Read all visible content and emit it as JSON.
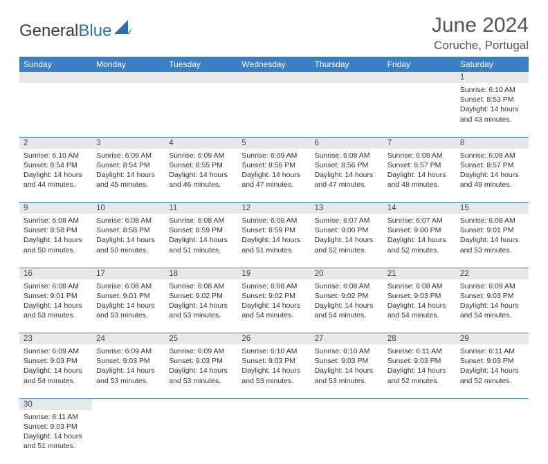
{
  "brand": {
    "part1": "General",
    "part2": "Blue"
  },
  "title": "June 2024",
  "location": "Coruche, Portugal",
  "colors": {
    "header_bg": "#3b7fc4",
    "header_fg": "#ffffff",
    "daynum_bg": "#e8e8e8",
    "border": "#3b7fc4",
    "text": "#333333",
    "logo_blue": "#2e6fb0"
  },
  "weekdays": [
    "Sunday",
    "Monday",
    "Tuesday",
    "Wednesday",
    "Thursday",
    "Friday",
    "Saturday"
  ],
  "weeks": [
    [
      null,
      null,
      null,
      null,
      null,
      null,
      {
        "n": "1",
        "sr": "Sunrise: 6:10 AM",
        "ss": "Sunset: 8:53 PM",
        "d1": "Daylight: 14 hours",
        "d2": "and 43 minutes."
      }
    ],
    [
      {
        "n": "2",
        "sr": "Sunrise: 6:10 AM",
        "ss": "Sunset: 8:54 PM",
        "d1": "Daylight: 14 hours",
        "d2": "and 44 minutes."
      },
      {
        "n": "3",
        "sr": "Sunrise: 6:09 AM",
        "ss": "Sunset: 8:54 PM",
        "d1": "Daylight: 14 hours",
        "d2": "and 45 minutes."
      },
      {
        "n": "4",
        "sr": "Sunrise: 6:09 AM",
        "ss": "Sunset: 8:55 PM",
        "d1": "Daylight: 14 hours",
        "d2": "and 46 minutes."
      },
      {
        "n": "5",
        "sr": "Sunrise: 6:09 AM",
        "ss": "Sunset: 8:56 PM",
        "d1": "Daylight: 14 hours",
        "d2": "and 47 minutes."
      },
      {
        "n": "6",
        "sr": "Sunrise: 6:08 AM",
        "ss": "Sunset: 8:56 PM",
        "d1": "Daylight: 14 hours",
        "d2": "and 47 minutes."
      },
      {
        "n": "7",
        "sr": "Sunrise: 6:08 AM",
        "ss": "Sunset: 8:57 PM",
        "d1": "Daylight: 14 hours",
        "d2": "and 48 minutes."
      },
      {
        "n": "8",
        "sr": "Sunrise: 6:08 AM",
        "ss": "Sunset: 8:57 PM",
        "d1": "Daylight: 14 hours",
        "d2": "and 49 minutes."
      }
    ],
    [
      {
        "n": "9",
        "sr": "Sunrise: 6:08 AM",
        "ss": "Sunset: 8:58 PM",
        "d1": "Daylight: 14 hours",
        "d2": "and 50 minutes."
      },
      {
        "n": "10",
        "sr": "Sunrise: 6:08 AM",
        "ss": "Sunset: 8:58 PM",
        "d1": "Daylight: 14 hours",
        "d2": "and 50 minutes."
      },
      {
        "n": "11",
        "sr": "Sunrise: 6:08 AM",
        "ss": "Sunset: 8:59 PM",
        "d1": "Daylight: 14 hours",
        "d2": "and 51 minutes."
      },
      {
        "n": "12",
        "sr": "Sunrise: 6:08 AM",
        "ss": "Sunset: 8:59 PM",
        "d1": "Daylight: 14 hours",
        "d2": "and 51 minutes."
      },
      {
        "n": "13",
        "sr": "Sunrise: 6:07 AM",
        "ss": "Sunset: 9:00 PM",
        "d1": "Daylight: 14 hours",
        "d2": "and 52 minutes."
      },
      {
        "n": "14",
        "sr": "Sunrise: 6:07 AM",
        "ss": "Sunset: 9:00 PM",
        "d1": "Daylight: 14 hours",
        "d2": "and 52 minutes."
      },
      {
        "n": "15",
        "sr": "Sunrise: 6:08 AM",
        "ss": "Sunset: 9:01 PM",
        "d1": "Daylight: 14 hours",
        "d2": "and 53 minutes."
      }
    ],
    [
      {
        "n": "16",
        "sr": "Sunrise: 6:08 AM",
        "ss": "Sunset: 9:01 PM",
        "d1": "Daylight: 14 hours",
        "d2": "and 53 minutes."
      },
      {
        "n": "17",
        "sr": "Sunrise: 6:08 AM",
        "ss": "Sunset: 9:01 PM",
        "d1": "Daylight: 14 hours",
        "d2": "and 53 minutes."
      },
      {
        "n": "18",
        "sr": "Sunrise: 6:08 AM",
        "ss": "Sunset: 9:02 PM",
        "d1": "Daylight: 14 hours",
        "d2": "and 53 minutes."
      },
      {
        "n": "19",
        "sr": "Sunrise: 6:08 AM",
        "ss": "Sunset: 9:02 PM",
        "d1": "Daylight: 14 hours",
        "d2": "and 54 minutes."
      },
      {
        "n": "20",
        "sr": "Sunrise: 6:08 AM",
        "ss": "Sunset: 9:02 PM",
        "d1": "Daylight: 14 hours",
        "d2": "and 54 minutes."
      },
      {
        "n": "21",
        "sr": "Sunrise: 6:08 AM",
        "ss": "Sunset: 9:03 PM",
        "d1": "Daylight: 14 hours",
        "d2": "and 54 minutes."
      },
      {
        "n": "22",
        "sr": "Sunrise: 6:09 AM",
        "ss": "Sunset: 9:03 PM",
        "d1": "Daylight: 14 hours",
        "d2": "and 54 minutes."
      }
    ],
    [
      {
        "n": "23",
        "sr": "Sunrise: 6:09 AM",
        "ss": "Sunset: 9:03 PM",
        "d1": "Daylight: 14 hours",
        "d2": "and 54 minutes."
      },
      {
        "n": "24",
        "sr": "Sunrise: 6:09 AM",
        "ss": "Sunset: 9:03 PM",
        "d1": "Daylight: 14 hours",
        "d2": "and 53 minutes."
      },
      {
        "n": "25",
        "sr": "Sunrise: 6:09 AM",
        "ss": "Sunset: 9:03 PM",
        "d1": "Daylight: 14 hours",
        "d2": "and 53 minutes."
      },
      {
        "n": "26",
        "sr": "Sunrise: 6:10 AM",
        "ss": "Sunset: 9:03 PM",
        "d1": "Daylight: 14 hours",
        "d2": "and 53 minutes."
      },
      {
        "n": "27",
        "sr": "Sunrise: 6:10 AM",
        "ss": "Sunset: 9:03 PM",
        "d1": "Daylight: 14 hours",
        "d2": "and 53 minutes."
      },
      {
        "n": "28",
        "sr": "Sunrise: 6:11 AM",
        "ss": "Sunset: 9:03 PM",
        "d1": "Daylight: 14 hours",
        "d2": "and 52 minutes."
      },
      {
        "n": "29",
        "sr": "Sunrise: 6:11 AM",
        "ss": "Sunset: 9:03 PM",
        "d1": "Daylight: 14 hours",
        "d2": "and 52 minutes."
      }
    ],
    [
      {
        "n": "30",
        "sr": "Sunrise: 6:11 AM",
        "ss": "Sunset: 9:03 PM",
        "d1": "Daylight: 14 hours",
        "d2": "and 51 minutes."
      },
      null,
      null,
      null,
      null,
      null,
      null
    ]
  ]
}
